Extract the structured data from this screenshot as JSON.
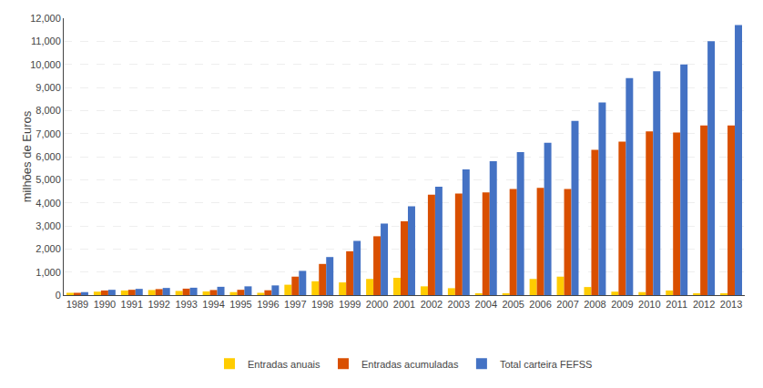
{
  "chart_data": {
    "type": "bar",
    "ylabel": "milhões de Euros",
    "categories": [
      "1989",
      "1990",
      "1991",
      "1992",
      "1993",
      "1994",
      "1995",
      "1996",
      "1997",
      "1998",
      "1999",
      "2000",
      "2001",
      "2002",
      "2003",
      "2004",
      "2005",
      "2006",
      "2007",
      "2008",
      "2009",
      "2010",
      "2011",
      "2012",
      "2013"
    ],
    "series": [
      {
        "name": "Entradas anuais",
        "color": "#FFCC00",
        "values": [
          100,
          150,
          200,
          220,
          180,
          160,
          130,
          100,
          450,
          600,
          550,
          700,
          750,
          380,
          300,
          50,
          50,
          700,
          800,
          350,
          150,
          130,
          200,
          50,
          70
        ]
      },
      {
        "name": "Entradas acumuladas",
        "color": "#D94F00",
        "values": [
          100,
          200,
          230,
          260,
          280,
          220,
          230,
          210,
          800,
          1350,
          1900,
          2550,
          3200,
          4350,
          4400,
          4450,
          4600,
          4650,
          4600,
          6300,
          6650,
          7100,
          7050,
          7350,
          7350
        ]
      },
      {
        "name": "Total carteira FEFSS",
        "color": "#4472C4",
        "values": [
          130,
          230,
          270,
          310,
          320,
          360,
          380,
          420,
          1050,
          1650,
          2350,
          3100,
          3850,
          4700,
          5450,
          5800,
          6200,
          6600,
          7550,
          8350,
          9400,
          9700,
          10000,
          11000,
          11700
        ]
      }
    ],
    "ylim": [
      0,
      12000
    ],
    "yticks": [
      0,
      {
        "value": 1000,
        "label": "1,000"
      },
      {
        "value": 2000,
        "label": "2,000"
      },
      {
        "value": 3000,
        "label": "3,000"
      },
      {
        "value": 4000,
        "label": "4,000"
      },
      {
        "value": 5000,
        "label": "5,000"
      },
      {
        "value": 6000,
        "label": "6,000"
      },
      {
        "value": 7000,
        "label": "7,000"
      },
      {
        "value": 8000,
        "label": "8,000"
      },
      {
        "value": 9000,
        "label": "9,000"
      },
      {
        "value": 10000,
        "label": "10,000"
      },
      {
        "value": 11000,
        "label": "11,000"
      },
      {
        "value": 12000,
        "label": "12,000"
      }
    ],
    "grid": true,
    "legend": "bottom"
  }
}
